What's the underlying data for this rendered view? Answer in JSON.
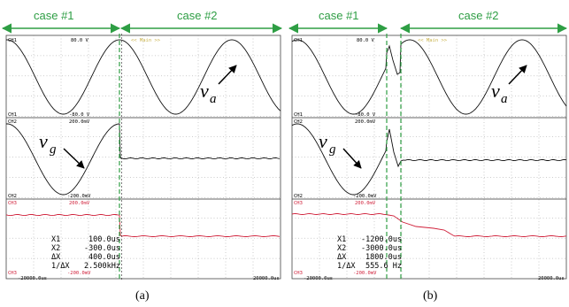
{
  "panels": [
    {
      "id": "a",
      "caption": "(a)",
      "case1": "case #1",
      "case2": "case #2",
      "ch1_top": "80.0 V",
      "ch1_bottom": "-80.0 V",
      "ch2_top": "200.0mV",
      "ch2_bottom": "-200.0mV",
      "ch3_top": "200.0mV",
      "ch3_bottom": "-200.0mV",
      "ch1_label": "CH1",
      "ch2_label": "CH2",
      "ch3_label": "CH3",
      "main_label": "<< Main >>",
      "time_start": "-20000.0us",
      "time_end": "20000.0us",
      "cursor_names": [
        "X1",
        "X2",
        "ΔX",
        "1/ΔX"
      ],
      "cursor_values": [
        "100.0us",
        "-300.0us",
        "400.0us",
        "2.500kHz"
      ],
      "var_a": "v",
      "var_a_sub": "a",
      "var_g": "v",
      "var_g_sub": "g"
    },
    {
      "id": "b",
      "caption": "(b)",
      "case1": "case #1",
      "case2": "case #2",
      "ch1_top": "80.0 V",
      "ch1_bottom": "-80.0 V",
      "ch2_top": "200.0mV",
      "ch2_bottom": "-200.0mV",
      "ch3_top": "200.0mV",
      "ch3_bottom": "-200.0mV",
      "ch1_label": "CH1",
      "ch2_label": "CH2",
      "ch3_label": "CH3",
      "main_label": "<< Main >>",
      "time_start": "-20000.0us",
      "time_end": "20000.0us",
      "cursor_names": [
        "X1",
        "X2",
        "ΔX",
        "1/ΔX"
      ],
      "cursor_values": [
        "-1200.0us",
        "-3000.0us",
        "1800.0us",
        "555.6 Hz"
      ],
      "var_a": "v",
      "var_a_sub": "a",
      "var_g": "v",
      "var_g_sub": "g"
    }
  ],
  "colors": {
    "case_arrow": "#2e9e44",
    "trace": "#111111",
    "trace_ch3": "#d0203a",
    "grid": "#9a9a9a",
    "cursor_line": "#2e9e44"
  }
}
